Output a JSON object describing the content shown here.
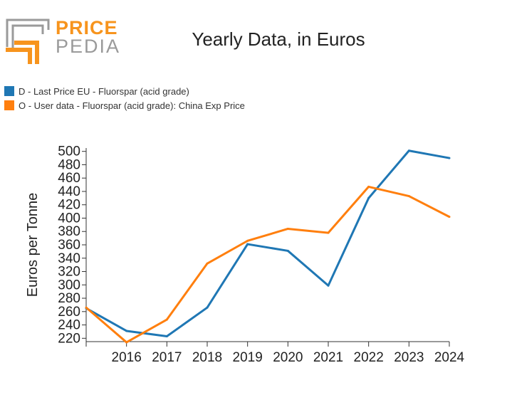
{
  "logo": {
    "word1": "PRICE",
    "word2": "PEDIA"
  },
  "colors": {
    "series1": "#1f77b4",
    "series2": "#ff7f0e",
    "logo_orange": "#f7941d",
    "logo_gray": "#9a9a9a"
  },
  "chart_data": {
    "type": "line",
    "title": "Yearly Data, in Euros",
    "xlabel": "",
    "ylabel": "Euros per Tonne",
    "x": [
      2015,
      2016,
      2017,
      2018,
      2019,
      2020,
      2021,
      2022,
      2023,
      2024
    ],
    "xticks": [
      2016,
      2017,
      2018,
      2019,
      2020,
      2021,
      2022,
      2023,
      2024
    ],
    "xlim": [
      2015,
      2024
    ],
    "ylim": [
      215,
      505
    ],
    "yticks": [
      220,
      240,
      260,
      280,
      300,
      320,
      340,
      360,
      380,
      400,
      420,
      440,
      460,
      480,
      500
    ],
    "series": [
      {
        "name": "D - Last Price EU - Fluorspar (acid grade)",
        "color": "#1f77b4",
        "values": [
          265,
          231,
          223,
          266,
          361,
          351,
          299,
          430,
          501,
          490
        ]
      },
      {
        "name": "O - User data - Fluorspar (acid grade): China Exp Price",
        "color": "#ff7f0e",
        "values": [
          266,
          214,
          248,
          332,
          366,
          384,
          378,
          447,
          433,
          402
        ]
      }
    ]
  }
}
